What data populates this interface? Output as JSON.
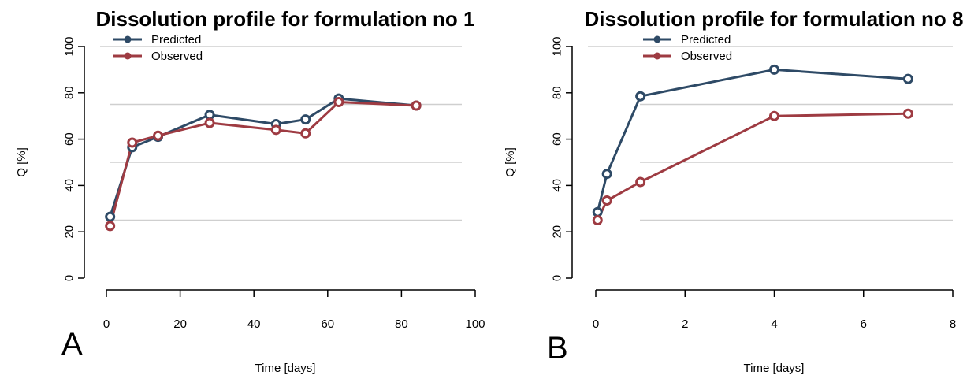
{
  "colors": {
    "predicted": "#2e4a66",
    "observed": "#9e3b42",
    "grid": "#cfcfcf",
    "axis": "#000000"
  },
  "chart_data": [
    {
      "type": "line",
      "panel_label": "A",
      "title": "Dissolution profile for formulation no 1",
      "xlabel": "Time [days]",
      "ylabel": "Q [%]",
      "xlim": [
        0,
        100
      ],
      "ylim": [
        0,
        100
      ],
      "xticks": [
        "0",
        "20",
        "40",
        "60",
        "80",
        "100"
      ],
      "yticks": [
        "0",
        "20",
        "40",
        "60",
        "80",
        "100"
      ],
      "grid": "horizontal, partial",
      "legend_placement": "top-left",
      "series": [
        {
          "name": "Predicted",
          "x": [
            1,
            7,
            14,
            28,
            46,
            54,
            63,
            84
          ],
          "y": [
            26.5,
            56.5,
            61,
            70.5,
            66.5,
            68.5,
            77.5,
            74.5
          ]
        },
        {
          "name": "Observed",
          "x": [
            1,
            7,
            14,
            28,
            46,
            54,
            63,
            84
          ],
          "y": [
            22.5,
            58.5,
            61.5,
            67,
            64,
            62.5,
            76,
            74.5
          ]
        }
      ]
    },
    {
      "type": "line",
      "panel_label": "B",
      "title": "Dissolution profile for formulation no 8",
      "xlabel": "Time [days]",
      "ylabel": "Q [%]",
      "xlim": [
        0,
        8
      ],
      "ylim": [
        0,
        100
      ],
      "xticks": [
        "0",
        "2",
        "4",
        "6",
        "8"
      ],
      "yticks": [
        "0",
        "20",
        "40",
        "60",
        "80",
        "100"
      ],
      "grid": "horizontal, partial",
      "legend_placement": "top-left",
      "series": [
        {
          "name": "Predicted",
          "x": [
            0.04,
            0.25,
            1,
            4,
            7
          ],
          "y": [
            28.5,
            45,
            78.5,
            90,
            86
          ]
        },
        {
          "name": "Observed",
          "x": [
            0.04,
            0.25,
            1,
            4,
            7
          ],
          "y": [
            25,
            33.5,
            41.5,
            70,
            71
          ]
        }
      ]
    }
  ]
}
